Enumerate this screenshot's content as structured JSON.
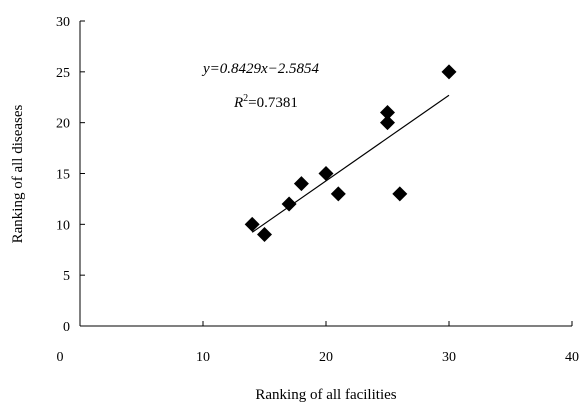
{
  "chart_data": {
    "type": "scatter",
    "title": "",
    "xlabel": "Ranking of all facilities",
    "ylabel": "Ranking of all diseases",
    "xlim": [
      0,
      40
    ],
    "ylim": [
      0,
      30
    ],
    "xticks": [
      0,
      10,
      20,
      30,
      40
    ],
    "yticks": [
      0,
      5,
      10,
      15,
      20,
      25,
      30
    ],
    "grid": false,
    "marker": "diamond",
    "marker_color": "#000000",
    "points": [
      {
        "x": 14,
        "y": 10
      },
      {
        "x": 15,
        "y": 9
      },
      {
        "x": 17,
        "y": 12
      },
      {
        "x": 18,
        "y": 14
      },
      {
        "x": 20,
        "y": 15
      },
      {
        "x": 21,
        "y": 13
      },
      {
        "x": 25,
        "y": 20
      },
      {
        "x": 25,
        "y": 21
      },
      {
        "x": 26,
        "y": 13
      },
      {
        "x": 30,
        "y": 25
      }
    ],
    "trendline": {
      "slope": 0.8429,
      "intercept": -2.5854,
      "x_range": [
        14,
        30
      ],
      "equation_text": "y=0.8429x−2.5854",
      "r2_text": "R2=0.7381"
    }
  }
}
